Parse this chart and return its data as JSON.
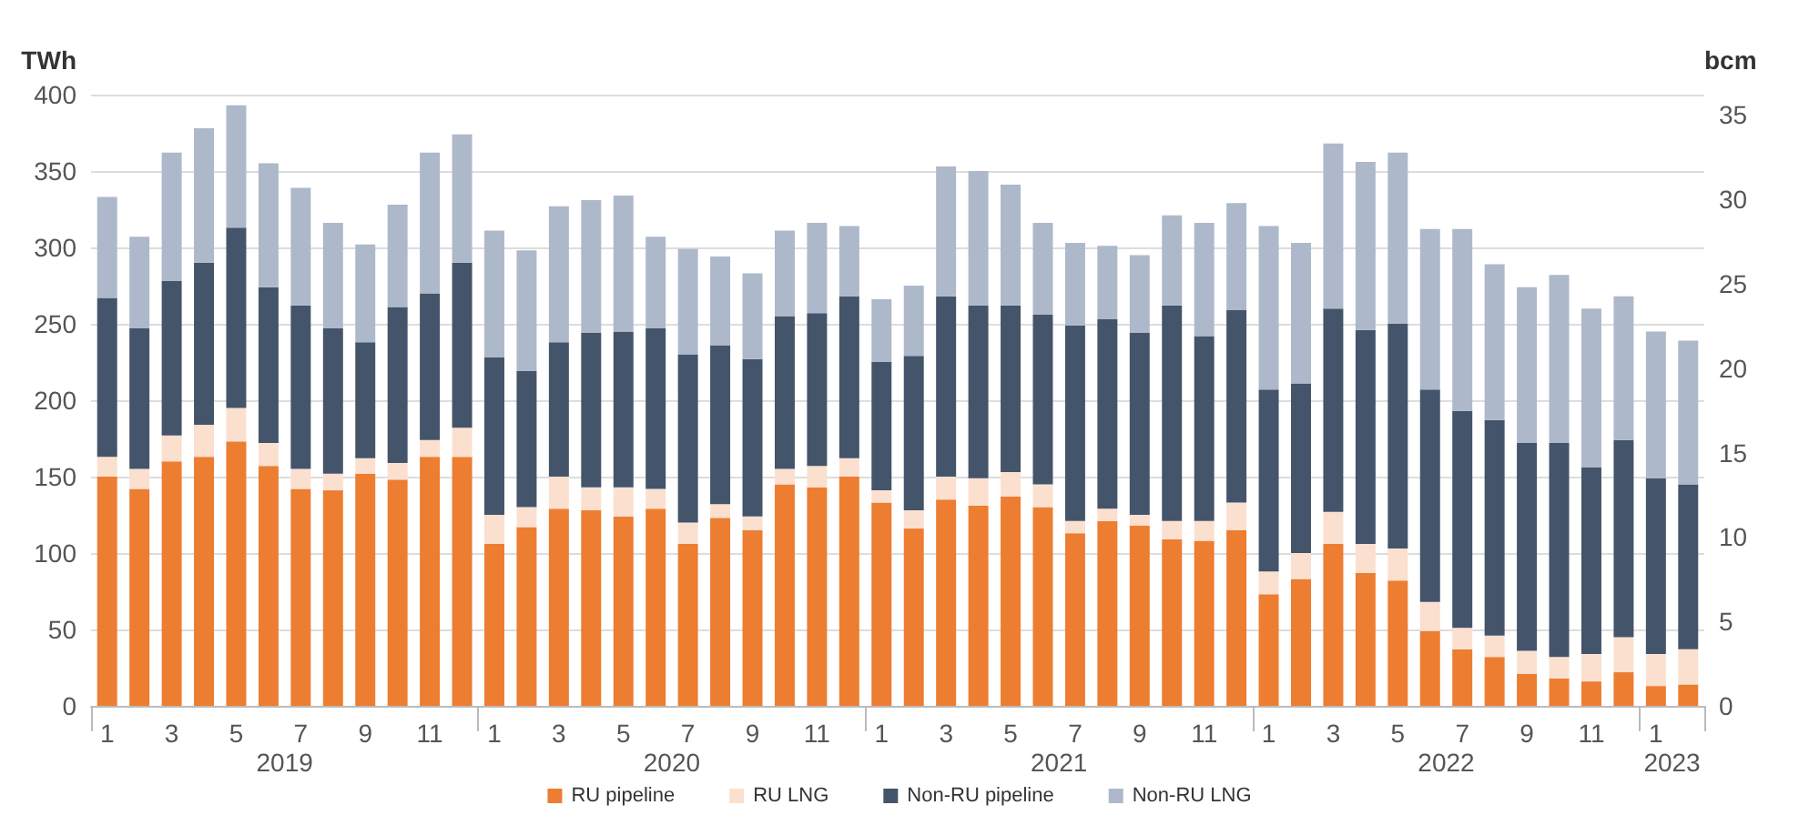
{
  "chart_data": {
    "type": "bar",
    "stacked": true,
    "ylabel": "TWh",
    "y2label": "bcm",
    "categories": [
      "1",
      null,
      "3",
      null,
      "5",
      null,
      "7",
      null,
      "9",
      null,
      "11",
      null,
      "1",
      null,
      "3",
      null,
      "5",
      null,
      "7",
      null,
      "9",
      null,
      "11",
      null,
      "1",
      null,
      "3",
      null,
      "5",
      null,
      "7",
      null,
      "9",
      null,
      "11",
      null,
      "1",
      null,
      "3",
      null,
      "5",
      null,
      "7",
      null,
      "9",
      null,
      "11",
      null,
      "1",
      null
    ],
    "annotations": [
      "2019",
      "2020",
      "2021",
      "2022",
      "2023"
    ],
    "series": [
      {
        "name": "RU pipeline",
        "color": "#ed7d31",
        "values": [
          150,
          142,
          160,
          163,
          173,
          157,
          142,
          141,
          152,
          148,
          163,
          163,
          106,
          117,
          129,
          128,
          124,
          129,
          106,
          123,
          115,
          145,
          143,
          150,
          133,
          116,
          135,
          131,
          137,
          130,
          113,
          121,
          118,
          109,
          108,
          115,
          73,
          83,
          106,
          87,
          82,
          49,
          37,
          32,
          21,
          18,
          16,
          22,
          13,
          14
        ]
      },
      {
        "name": "RU LNG",
        "color": "#fbe0cf",
        "values": [
          13,
          13,
          17,
          21,
          22,
          15,
          13,
          11,
          10,
          11,
          11,
          19,
          19,
          13,
          21,
          15,
          19,
          13,
          14,
          9,
          9,
          10,
          14,
          12,
          8,
          12,
          15,
          18,
          16,
          15,
          8,
          8,
          7,
          12,
          13,
          18,
          15,
          17,
          21,
          19,
          21,
          19,
          14,
          14,
          15,
          14,
          18,
          23,
          21,
          23
        ]
      },
      {
        "name": "Non-RU pipeline",
        "color": "#44546a",
        "values": [
          104,
          92,
          101,
          106,
          118,
          102,
          107,
          95,
          76,
          102,
          96,
          108,
          103,
          89,
          88,
          101,
          102,
          105,
          110,
          104,
          103,
          100,
          100,
          106,
          84,
          101,
          118,
          113,
          109,
          111,
          128,
          124,
          119,
          141,
          121,
          126,
          119,
          111,
          133,
          140,
          147,
          139,
          142,
          141,
          136,
          140,
          122,
          129,
          115,
          108
        ]
      },
      {
        "name": "Non-RU LNG",
        "color": "#adb9ca",
        "values": [
          66,
          60,
          84,
          88,
          80,
          81,
          77,
          69,
          64,
          67,
          92,
          84,
          83,
          79,
          89,
          87,
          89,
          60,
          69,
          58,
          56,
          56,
          59,
          46,
          41,
          46,
          85,
          88,
          79,
          60,
          54,
          48,
          51,
          59,
          74,
          70,
          107,
          92,
          108,
          110,
          112,
          105,
          119,
          102,
          102,
          110,
          104,
          94,
          96,
          94
        ]
      }
    ],
    "ylim": [
      0,
      400
    ],
    "yticks": [
      0,
      50,
      100,
      150,
      200,
      250,
      300,
      350,
      400
    ],
    "y2lim": [
      0,
      36.2
    ],
    "y2ticks": [
      0,
      5,
      10,
      15,
      20,
      25,
      30,
      35
    ],
    "grid": "y",
    "legend": "bottom"
  }
}
